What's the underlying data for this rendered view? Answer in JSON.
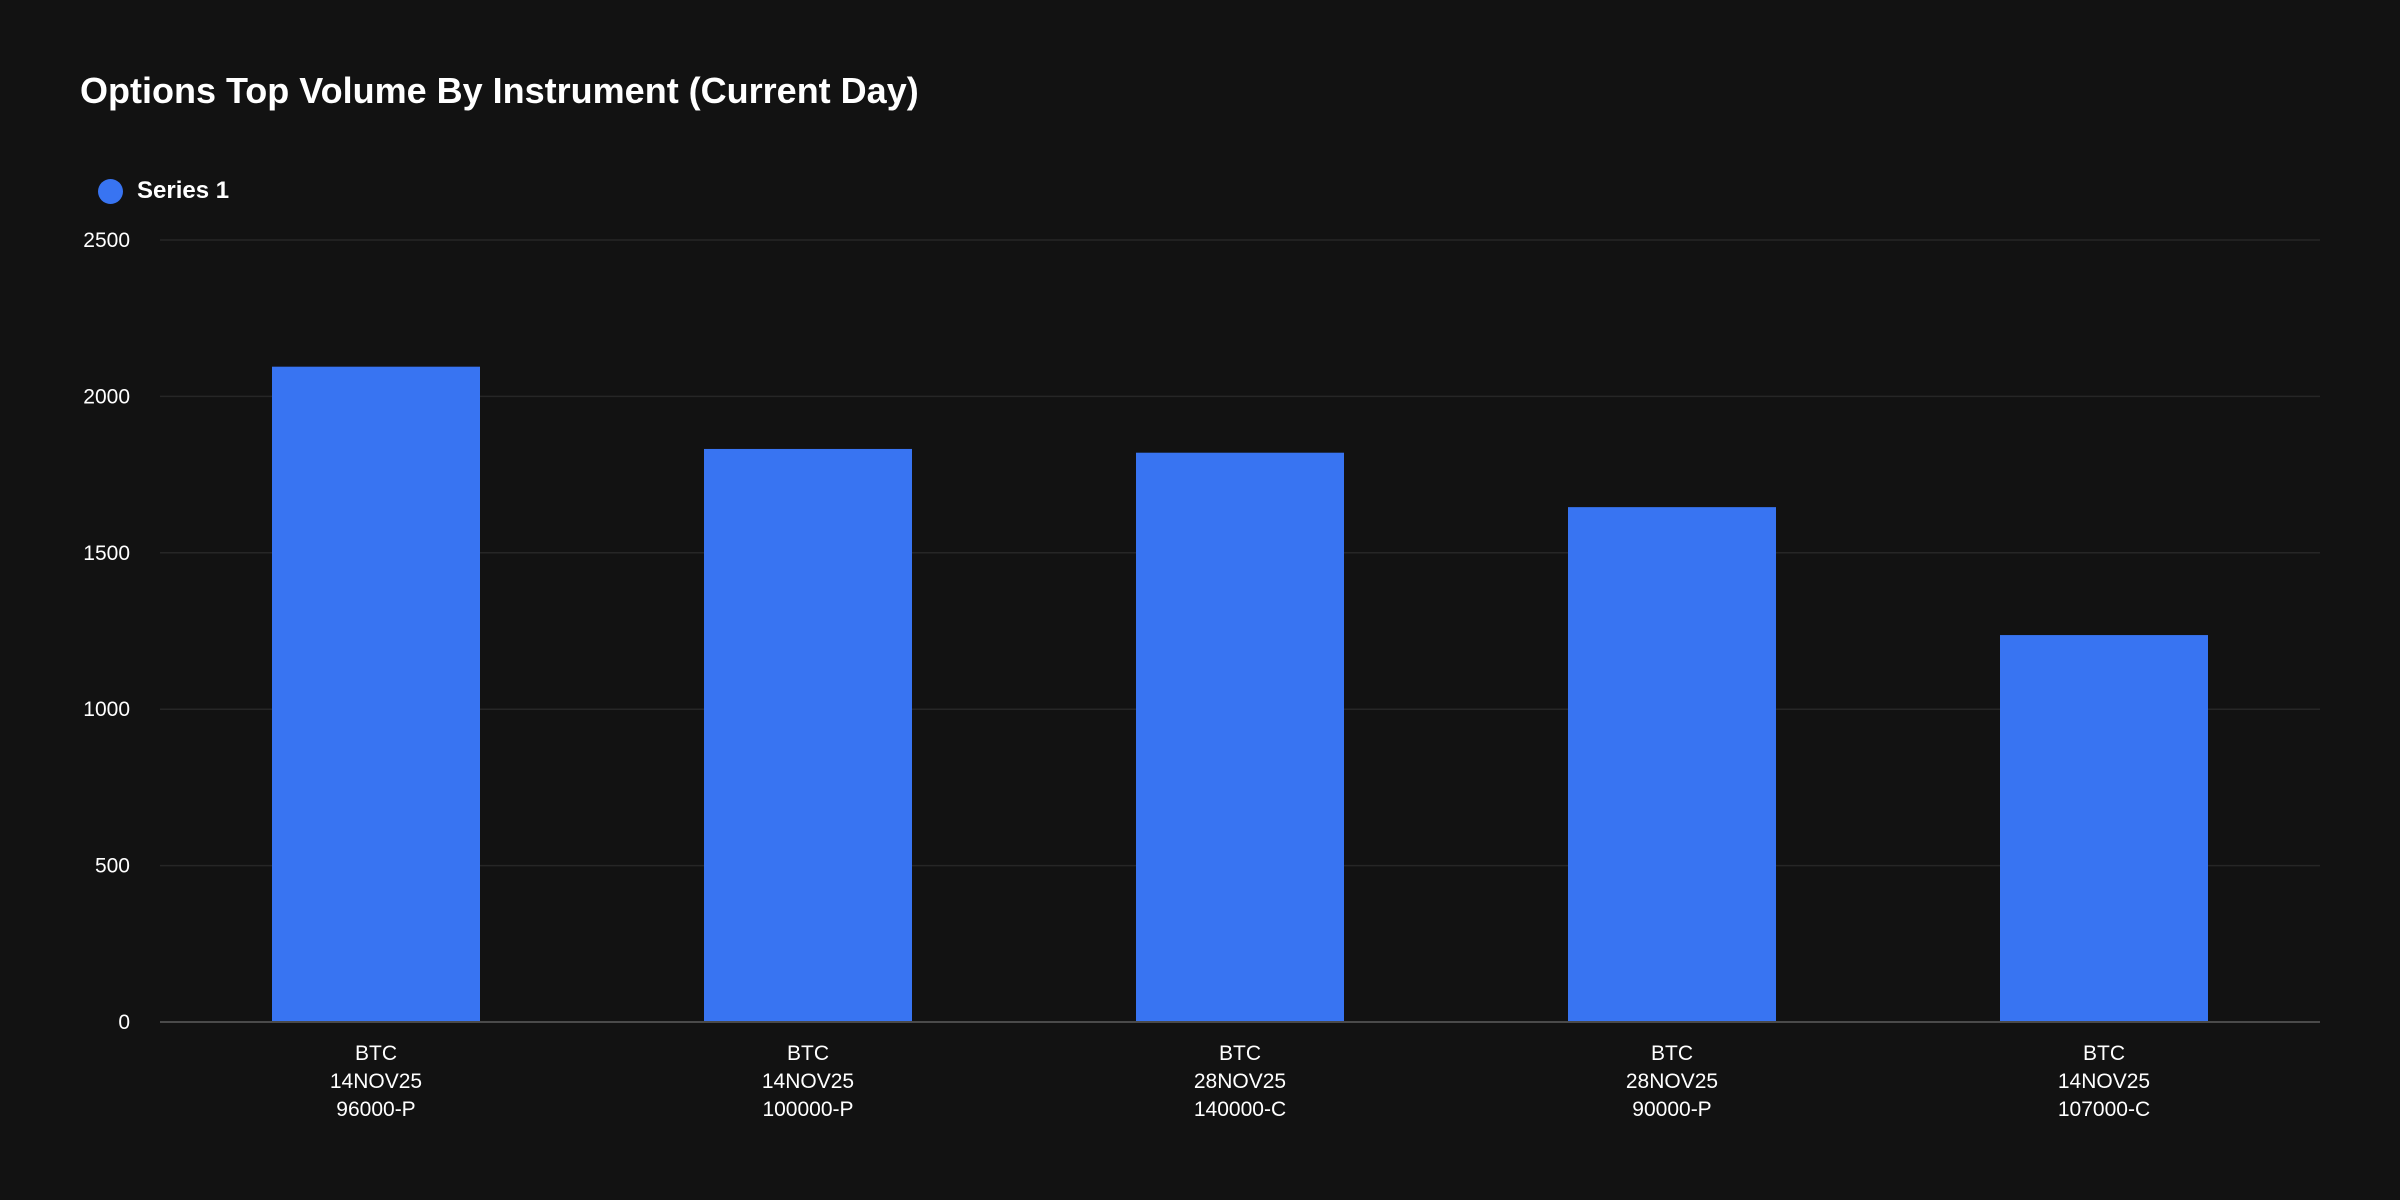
{
  "chart_data": {
    "type": "bar",
    "title": "Options Top Volume By Instrument (Current Day)",
    "xlabel": "",
    "ylabel": "",
    "ylim": [
      0,
      2500
    ],
    "yticks": [
      "0",
      "500",
      "1000",
      "1500",
      "2000",
      "2500"
    ],
    "grid": true,
    "legend_position": "top-left",
    "categories": [
      [
        "BTC",
        "14NOV25",
        "96000-P"
      ],
      [
        "BTC",
        "14NOV25",
        "100000-P"
      ],
      [
        "BTC",
        "28NOV25",
        "140000-C"
      ],
      [
        "BTC",
        "28NOV25",
        "90000-P"
      ],
      [
        "BTC",
        "14NOV25",
        "107000-C"
      ]
    ],
    "series": [
      {
        "name": "Series 1",
        "color": "#3874f2",
        "values": [
          2095,
          1832,
          1820,
          1646,
          1237
        ]
      }
    ]
  },
  "colors": {
    "background": "#121212",
    "grid": "#262626",
    "axis": "#4a4a4a"
  }
}
